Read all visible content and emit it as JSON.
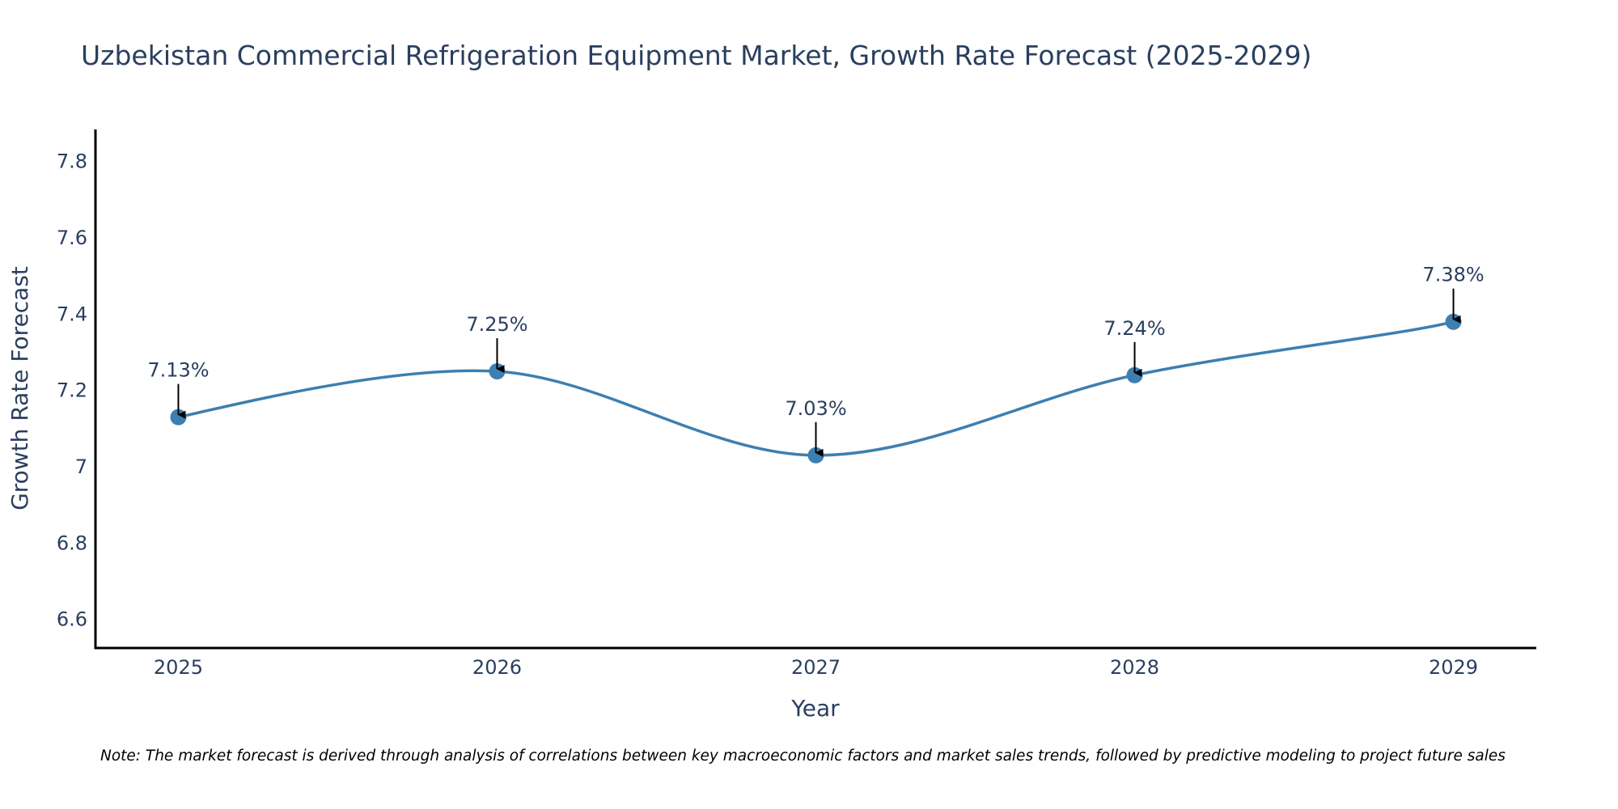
{
  "chart_data": {
    "type": "line",
    "title": "Uzbekistan Commercial Refrigeration Equipment Market, Growth Rate Forecast (2025-2029)",
    "xlabel": "Year",
    "ylabel": "Growth Rate Forecast",
    "x": [
      2025,
      2026,
      2027,
      2028,
      2029
    ],
    "series": [
      {
        "name": "Growth Rate Forecast",
        "values": [
          7.13,
          7.25,
          7.03,
          7.24,
          7.38
        ],
        "color": "#3d7fb0",
        "line_shape": "spline",
        "markers": true
      }
    ],
    "annotations": [
      "7.13%",
      "7.25%",
      "7.03%",
      "7.24%",
      "7.38%"
    ],
    "x_tick_labels": [
      "2025",
      "2026",
      "2027",
      "2028",
      "2029"
    ],
    "y_ticks": [
      6.6,
      6.8,
      7,
      7.2,
      7.4,
      7.6,
      7.8
    ],
    "y_tick_labels": [
      "6.6",
      "6.8",
      "7",
      "7.2",
      "7.4",
      "7.6",
      "7.8"
    ],
    "xlim": [
      2024.74,
      2029.26
    ],
    "ylim": [
      6.525,
      7.884
    ],
    "grid": false,
    "legend": "none",
    "note": "Note: The market forecast is derived through analysis of correlations between key macroeconomic factors and market sales trends, followed by predictive modeling to project future sales"
  }
}
